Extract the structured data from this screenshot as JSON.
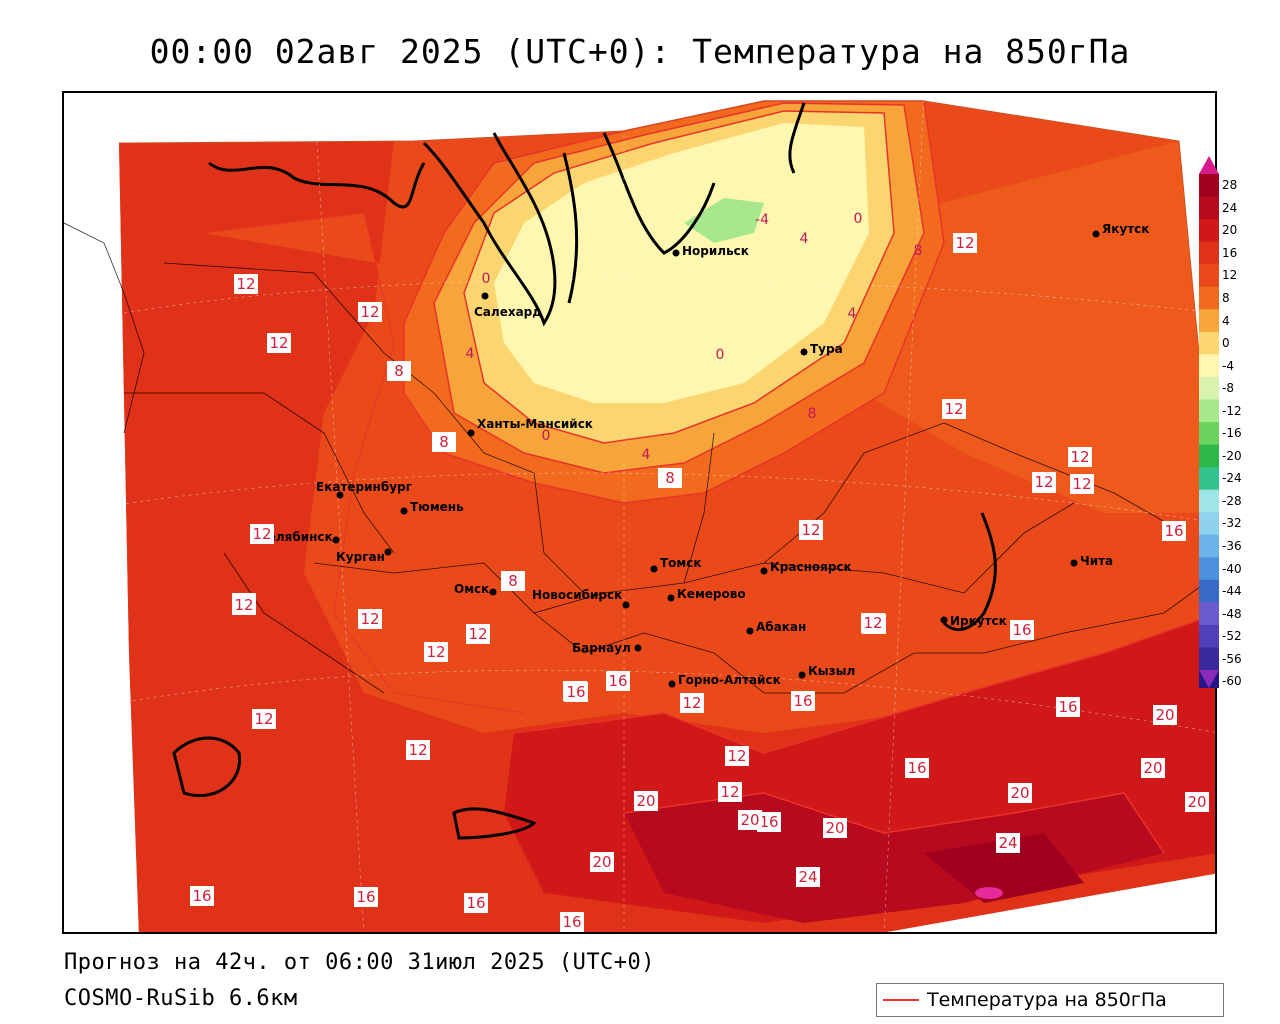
{
  "title": "00:00 02авг 2025 (UTC+0): Температура на 850гПа",
  "forecast_info": "Прогноз на 42ч. от 06:00 31июл 2025 (UTC+0)",
  "model_info": "COSMO-RuSib 6.6км",
  "legend": {
    "series_label": "Температура на 850гПа",
    "line_color": "#e8332a"
  },
  "colorbar": {
    "ticks": [
      "28",
      "24",
      "20",
      "16",
      "12",
      "8",
      "4",
      "0",
      "-4",
      "-8",
      "-12",
      "-16",
      "-20",
      "-24",
      "-28",
      "-32",
      "-36",
      "-40",
      "-44",
      "-48",
      "-52",
      "-56",
      "-60"
    ],
    "colors": [
      "#a0001e",
      "#b80a1e",
      "#d01818",
      "#e03218",
      "#ea4a1a",
      "#f26a1e",
      "#f7a43a",
      "#fbd670",
      "#fff7b0",
      "#d8f2b0",
      "#a8e88c",
      "#6cd45e",
      "#2eb84a",
      "#34c28c",
      "#9ee6e6",
      "#8ed2f0",
      "#6ab4ea",
      "#4a90dc",
      "#3868c8",
      "#6a5ad0",
      "#5040b8",
      "#3a2aa0",
      "#24158a",
      "#8b2ab8"
    ]
  },
  "cities": [
    {
      "name": "Норильск"
    },
    {
      "name": "Якутск"
    },
    {
      "name": "Салехард"
    },
    {
      "name": "Тура"
    },
    {
      "name": "Ханты-Мансийск"
    },
    {
      "name": "Екатеринбург"
    },
    {
      "name": "Тюмень"
    },
    {
      "name": "Челябинск"
    },
    {
      "name": "Курган"
    },
    {
      "name": "Омск"
    },
    {
      "name": "Томск"
    },
    {
      "name": "Красноярск"
    },
    {
      "name": "Новосибирск"
    },
    {
      "name": "Кемерово"
    },
    {
      "name": "Абакан"
    },
    {
      "name": "Барнаул"
    },
    {
      "name": "Горно-Алтайск"
    },
    {
      "name": "Кызыл"
    },
    {
      "name": "Иркутск"
    },
    {
      "name": "Чита"
    }
  ],
  "contour_labels": [
    "12",
    "12",
    "12",
    "12",
    "12",
    "12",
    "12",
    "16",
    "16",
    "12",
    "16",
    "12",
    "20",
    "20",
    "16",
    "20",
    "20",
    "24",
    "24",
    "20",
    "16",
    "12",
    "12",
    "16",
    "12",
    "12",
    "16",
    "16",
    "20",
    "20",
    "20",
    "12",
    "12",
    "12",
    "12",
    "16",
    "8",
    "8",
    "8",
    "8",
    "12",
    "12",
    "12",
    "16",
    "16",
    "16",
    "16",
    "12",
    "12",
    "12"
  ],
  "isoline_labels": [
    "-4",
    "0",
    "0",
    "0",
    "4",
    "4",
    "4",
    "8",
    "8",
    "0",
    "4"
  ]
}
